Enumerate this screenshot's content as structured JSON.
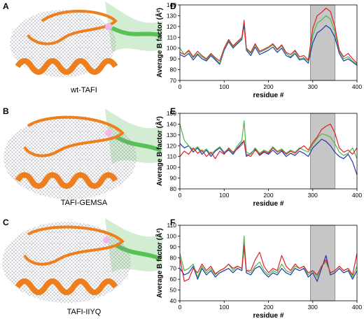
{
  "figure": {
    "structure_panels": [
      {
        "letter": "A",
        "caption": "wt-TAFI"
      },
      {
        "letter": "B",
        "caption": "TAFI-GEMSA"
      },
      {
        "letter": "C",
        "caption": "TAFI-IIYQ"
      }
    ],
    "colors": {
      "red": "#e0202a",
      "blue": "#1f3aa8",
      "green": "#4cb84a",
      "highlight": "#c6c6c6",
      "orange": "#ee7f1c",
      "mesh": "#8a8a9a",
      "ribbon_green": "#39b53a"
    }
  },
  "chart_data": [
    {
      "panel": "D",
      "type": "line",
      "xlabel": "residue #",
      "ylabel": "Average B factor (Å²)",
      "xlim": [
        0,
        400
      ],
      "ylim": [
        70,
        140
      ],
      "xticks": [
        0,
        100,
        200,
        300,
        400
      ],
      "yticks": [
        70,
        80,
        90,
        100,
        110,
        120,
        130,
        140
      ],
      "highlight_range": [
        295,
        350
      ],
      "grid": false,
      "x": [
        0,
        10,
        20,
        30,
        40,
        50,
        60,
        70,
        80,
        90,
        100,
        110,
        120,
        130,
        140,
        145,
        150,
        160,
        170,
        180,
        190,
        200,
        210,
        220,
        230,
        240,
        250,
        260,
        270,
        280,
        290,
        300,
        310,
        320,
        330,
        340,
        350,
        360,
        370,
        380,
        390,
        400
      ],
      "series": [
        {
          "color": "red",
          "values": [
            96,
            94,
            98,
            92,
            97,
            93,
            90,
            95,
            91,
            88,
            100,
            108,
            102,
            106,
            110,
            125,
            100,
            96,
            104,
            97,
            99,
            101,
            104,
            99,
            103,
            96,
            94,
            98,
            92,
            93,
            89,
            118,
            130,
            133,
            137,
            134,
            120,
            98,
            92,
            95,
            90,
            86
          ]
        },
        {
          "color": "blue",
          "values": [
            94,
            92,
            95,
            89,
            94,
            90,
            88,
            93,
            89,
            85,
            98,
            106,
            100,
            104,
            108,
            122,
            98,
            93,
            101,
            94,
            96,
            98,
            101,
            96,
            100,
            93,
            91,
            95,
            89,
            90,
            86,
            105,
            114,
            117,
            121,
            118,
            110,
            95,
            88,
            90,
            87,
            84
          ]
        },
        {
          "color": "green",
          "values": [
            100,
            94,
            97,
            91,
            95,
            92,
            89,
            94,
            90,
            86,
            99,
            107,
            101,
            105,
            109,
            126,
            99,
            95,
            103,
            96,
            98,
            100,
            103,
            98,
            102,
            95,
            92,
            97,
            90,
            91,
            88,
            112,
            123,
            126,
            130,
            127,
            115,
            97,
            90,
            92,
            88,
            85
          ]
        }
      ]
    },
    {
      "panel": "E",
      "type": "line",
      "xlabel": "residue #",
      "ylabel": "Average B factor (Å²)",
      "xlim": [
        0,
        400
      ],
      "ylim": [
        80,
        150
      ],
      "xticks": [
        0,
        100,
        200,
        300,
        400
      ],
      "yticks": [
        80,
        90,
        100,
        110,
        120,
        130,
        140,
        150
      ],
      "highlight_range": [
        295,
        350
      ],
      "grid": false,
      "x": [
        0,
        10,
        20,
        30,
        40,
        50,
        60,
        70,
        80,
        90,
        100,
        110,
        120,
        130,
        140,
        145,
        150,
        160,
        170,
        180,
        190,
        200,
        210,
        220,
        230,
        240,
        250,
        260,
        270,
        280,
        290,
        300,
        310,
        320,
        330,
        340,
        350,
        360,
        370,
        380,
        390,
        400
      ],
      "series": [
        {
          "color": "red",
          "values": [
            110,
            115,
            112,
            118,
            113,
            116,
            110,
            114,
            108,
            115,
            112,
            118,
            114,
            117,
            121,
            125,
            112,
            110,
            116,
            112,
            115,
            113,
            118,
            114,
            116,
            112,
            115,
            113,
            117,
            120,
            116,
            123,
            128,
            135,
            138,
            140,
            132,
            118,
            114,
            116,
            112,
            118
          ]
        },
        {
          "color": "blue",
          "values": [
            122,
            118,
            120,
            114,
            118,
            112,
            116,
            110,
            115,
            118,
            113,
            116,
            112,
            118,
            123,
            124,
            110,
            113,
            117,
            111,
            114,
            112,
            116,
            112,
            115,
            110,
            113,
            111,
            115,
            113,
            110,
            118,
            122,
            126,
            124,
            120,
            114,
            110,
            108,
            112,
            105,
            93
          ]
        },
        {
          "color": "green",
          "values": [
            140,
            125,
            120,
            116,
            119,
            114,
            117,
            112,
            116,
            119,
            114,
            117,
            113,
            120,
            125,
            143,
            114,
            112,
            118,
            113,
            116,
            114,
            119,
            115,
            117,
            113,
            116,
            114,
            118,
            116,
            114,
            121,
            127,
            131,
            130,
            128,
            122,
            114,
            111,
            113,
            118,
            108
          ]
        }
      ]
    },
    {
      "panel": "F",
      "type": "line",
      "xlabel": "residue #",
      "ylabel": "Average B factor (Å²)",
      "xlim": [
        0,
        400
      ],
      "ylim": [
        40,
        110
      ],
      "xticks": [
        0,
        100,
        200,
        300,
        400
      ],
      "yticks": [
        40,
        50,
        60,
        70,
        80,
        90,
        100,
        110
      ],
      "highlight_range": [
        295,
        350
      ],
      "grid": false,
      "x": [
        0,
        10,
        20,
        30,
        40,
        50,
        60,
        70,
        80,
        90,
        100,
        110,
        120,
        130,
        140,
        145,
        150,
        160,
        170,
        180,
        190,
        200,
        210,
        220,
        230,
        240,
        250,
        260,
        270,
        280,
        290,
        300,
        310,
        320,
        330,
        340,
        350,
        360,
        370,
        380,
        390,
        400
      ],
      "series": [
        {
          "color": "red",
          "values": [
            80,
            58,
            60,
            70,
            66,
            74,
            68,
            72,
            65,
            68,
            70,
            74,
            70,
            72,
            70,
            90,
            68,
            68,
            78,
            85,
            72,
            66,
            70,
            68,
            82,
            72,
            68,
            74,
            70,
            72,
            66,
            68,
            64,
            72,
            78,
            66,
            68,
            72,
            68,
            70,
            64,
            84
          ]
        },
        {
          "color": "blue",
          "values": [
            70,
            64,
            66,
            72,
            60,
            70,
            64,
            68,
            62,
            66,
            68,
            70,
            66,
            70,
            68,
            92,
            66,
            64,
            70,
            72,
            66,
            62,
            66,
            64,
            70,
            66,
            64,
            70,
            68,
            70,
            62,
            66,
            58,
            70,
            82,
            64,
            66,
            70,
            66,
            68,
            60,
            68
          ]
        },
        {
          "color": "green",
          "values": [
            84,
            68,
            70,
            74,
            62,
            72,
            66,
            70,
            64,
            68,
            70,
            74,
            68,
            72,
            70,
            100,
            68,
            66,
            72,
            76,
            68,
            64,
            68,
            66,
            74,
            68,
            66,
            72,
            70,
            72,
            64,
            68,
            62,
            72,
            76,
            66,
            68,
            72,
            68,
            70,
            62,
            72
          ]
        }
      ]
    }
  ]
}
